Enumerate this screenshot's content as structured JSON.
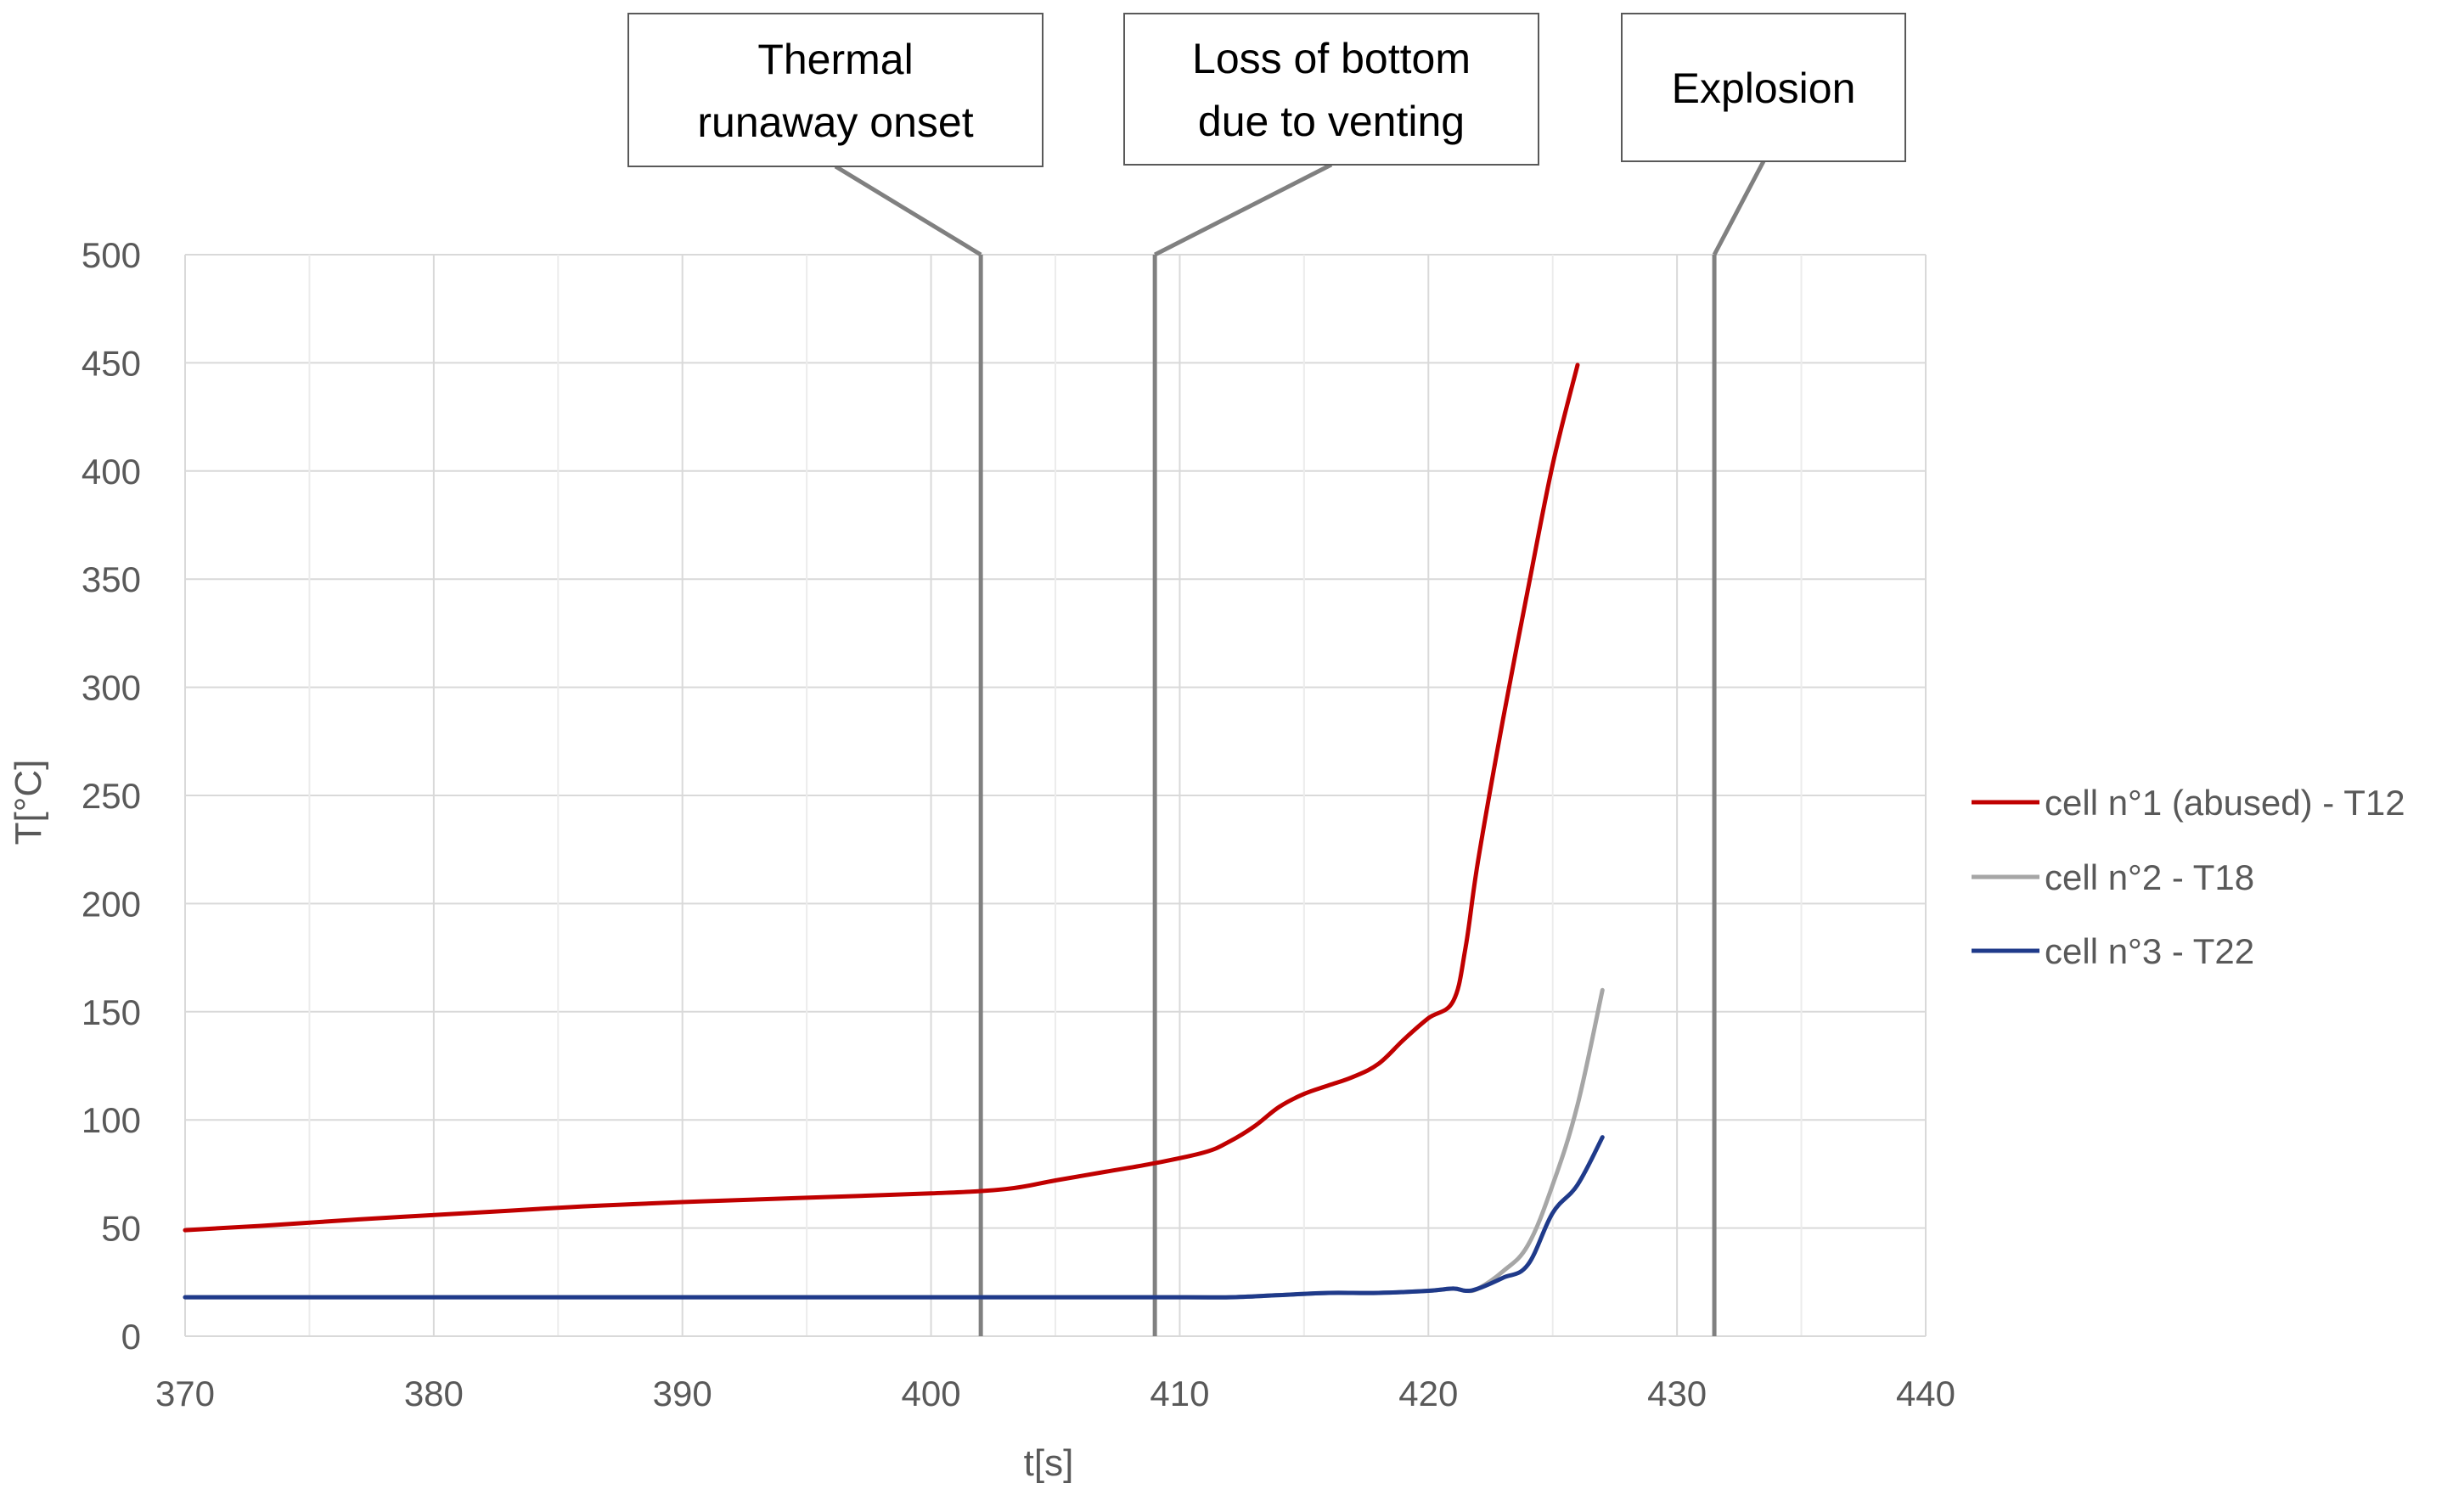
{
  "chart_data": {
    "type": "line",
    "title": "",
    "xlabel": "t[s]",
    "ylabel": "T[°C]",
    "xlim": [
      370,
      440
    ],
    "ylim": [
      0,
      500
    ],
    "xticks": [
      370,
      380,
      390,
      400,
      410,
      420,
      430,
      440
    ],
    "yticks": [
      0,
      50,
      100,
      150,
      200,
      250,
      300,
      350,
      400,
      450,
      500
    ],
    "grid": true,
    "legend_position": "right",
    "series": [
      {
        "name": "cell n°1 (abused) - T12",
        "color": "#c00000",
        "x": [
          370,
          373,
          377,
          380,
          383,
          386,
          390,
          395,
          400,
          403,
          405,
          407,
          409,
          411,
          412,
          413,
          414,
          415,
          416,
          417,
          418,
          419,
          420,
          421,
          421.5,
          422,
          423,
          424,
          425,
          426
        ],
        "y": [
          49,
          51,
          54,
          56,
          58,
          60,
          62,
          64,
          66,
          68,
          72,
          76,
          80,
          85,
          90,
          97,
          106,
          112,
          116,
          120,
          126,
          137,
          147,
          155,
          180,
          220,
          285,
          345,
          403,
          449
        ]
      },
      {
        "name": "cell n°2 - T18",
        "color": "#a6a6a6",
        "x": [
          370,
          380,
          390,
          400,
          410,
          412,
          414,
          416,
          418,
          420,
          421,
          421.5,
          422,
          423,
          424,
          425,
          426,
          427
        ],
        "y": [
          18,
          18,
          18,
          18,
          18,
          18,
          19,
          20,
          20,
          21,
          22,
          21,
          22,
          30,
          42,
          70,
          107,
          160
        ]
      },
      {
        "name": "cell n°3 - T22",
        "color": "#1f3a8a",
        "x": [
          370,
          380,
          390,
          400,
          410,
          412,
          414,
          416,
          418,
          420,
          421,
          421.5,
          422,
          423,
          424,
          425,
          426,
          427
        ],
        "y": [
          18,
          18,
          18,
          18,
          18,
          18,
          19,
          20,
          20,
          21,
          22,
          21,
          22,
          27,
          33,
          57,
          70,
          92
        ]
      }
    ],
    "annotations": [
      {
        "text_lines": [
          "Thermal",
          "runaway onset"
        ],
        "x": 402
      },
      {
        "text_lines": [
          "Loss of bottom",
          "due to venting"
        ],
        "x": 409
      },
      {
        "text_lines": [
          "Explosion"
        ],
        "x": 431.5
      }
    ]
  }
}
